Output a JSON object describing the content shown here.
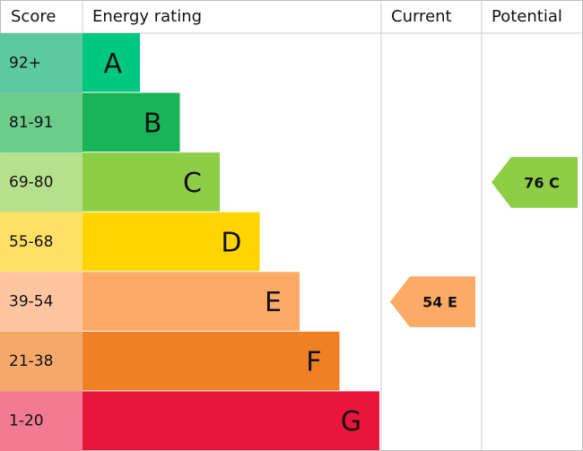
{
  "header": {
    "score": "Score",
    "rating": "Energy rating",
    "current": "Current",
    "potential": "Potential"
  },
  "rows": [
    {
      "score": "92+",
      "rating": "A",
      "color": "#00c781",
      "score_color": "#5ec8a0"
    },
    {
      "score": "81-91",
      "rating": "B",
      "color": "#19b459",
      "score_color": "#6ccc8a"
    },
    {
      "score": "69-80",
      "rating": "C",
      "color": "#8dce46",
      "score_color": "#b7e08c"
    },
    {
      "score": "55-68",
      "rating": "D",
      "color": "#ffd500",
      "score_color": "#ffe066"
    },
    {
      "score": "39-54",
      "rating": "E",
      "color": "#fcaa65",
      "score_color": "#fdc6a0"
    },
    {
      "score": "21-38",
      "rating": "F",
      "color": "#ef8023",
      "score_color": "#f4a86a"
    },
    {
      "score": "1-20",
      "rating": "G",
      "color": "#e9153b",
      "score_color": "#f27a92"
    }
  ],
  "current": {
    "score": 54,
    "rating": "E"
  },
  "potential": {
    "score": 76,
    "rating": "C"
  }
}
